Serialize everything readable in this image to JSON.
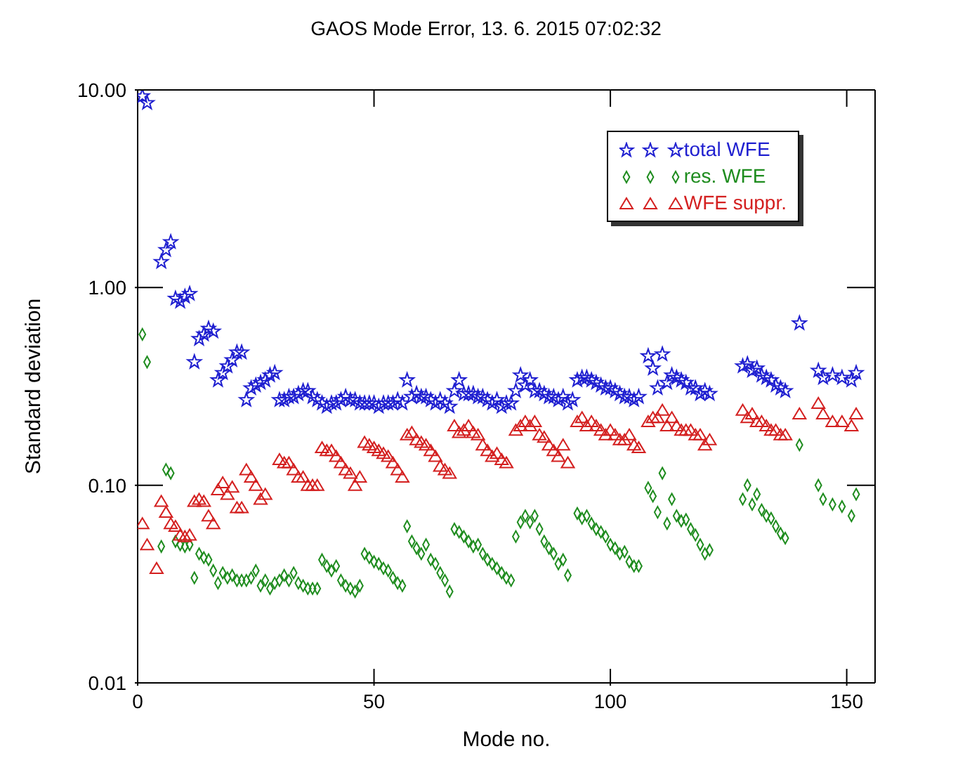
{
  "chart_data": {
    "type": "scatter",
    "title": "GAOS Mode Error, 13. 6. 2015  07:02:32",
    "xlabel": "Mode no.",
    "ylabel": "Standard deviation",
    "log": "y",
    "grid": false,
    "legend": "top right",
    "xlim": [
      0,
      156
    ],
    "xticks": [
      0,
      50,
      100,
      150
    ],
    "ylim": [
      0.01,
      10
    ],
    "yticks": [
      {
        "value": 0.01,
        "label": "0.01"
      },
      {
        "value": 0.1,
        "label": "0.10"
      },
      {
        "value": 1,
        "label": "1.00"
      },
      {
        "value": 10,
        "label": "10.00"
      }
    ],
    "series": [
      {
        "name": "total WFE",
        "color": "#1f1fd0",
        "marker": "star",
        "x": [
          1,
          2,
          5,
          6,
          7,
          8,
          9,
          10,
          11,
          12,
          13,
          14,
          15,
          16,
          17,
          18,
          19,
          20,
          21,
          22,
          23,
          24,
          25,
          26,
          27,
          28,
          29,
          30,
          31,
          32,
          33,
          34,
          35,
          36,
          37,
          38,
          39,
          40,
          41,
          42,
          43,
          44,
          45,
          46,
          47,
          48,
          49,
          50,
          51,
          52,
          53,
          54,
          55,
          56,
          57,
          58,
          59,
          60,
          61,
          62,
          63,
          64,
          65,
          66,
          67,
          68,
          69,
          70,
          71,
          72,
          73,
          74,
          75,
          76,
          77,
          78,
          79,
          80,
          81,
          82,
          83,
          84,
          85,
          86,
          87,
          88,
          89,
          90,
          91,
          92,
          93,
          94,
          95,
          96,
          97,
          98,
          99,
          100,
          101,
          102,
          103,
          104,
          105,
          106,
          108,
          109,
          110,
          111,
          112,
          113,
          114,
          115,
          116,
          117,
          118,
          119,
          120,
          121,
          128,
          129,
          130,
          131,
          132,
          133,
          134,
          135,
          136,
          137,
          140,
          144,
          145,
          147,
          149,
          151,
          152
        ],
        "values": [
          9.3,
          8.6,
          1.35,
          1.55,
          1.7,
          0.88,
          0.85,
          0.9,
          0.93,
          0.42,
          0.55,
          0.58,
          0.62,
          0.6,
          0.34,
          0.37,
          0.4,
          0.43,
          0.47,
          0.47,
          0.27,
          0.31,
          0.32,
          0.33,
          0.34,
          0.36,
          0.37,
          0.27,
          0.27,
          0.28,
          0.28,
          0.29,
          0.3,
          0.3,
          0.28,
          0.27,
          0.26,
          0.25,
          0.26,
          0.26,
          0.27,
          0.28,
          0.27,
          0.27,
          0.26,
          0.26,
          0.26,
          0.26,
          0.25,
          0.26,
          0.26,
          0.26,
          0.27,
          0.26,
          0.34,
          0.28,
          0.29,
          0.28,
          0.28,
          0.27,
          0.26,
          0.27,
          0.26,
          0.25,
          0.3,
          0.34,
          0.29,
          0.29,
          0.29,
          0.28,
          0.28,
          0.27,
          0.26,
          0.27,
          0.25,
          0.26,
          0.26,
          0.3,
          0.36,
          0.32,
          0.34,
          0.3,
          0.3,
          0.29,
          0.28,
          0.28,
          0.27,
          0.28,
          0.26,
          0.27,
          0.34,
          0.35,
          0.35,
          0.34,
          0.33,
          0.32,
          0.31,
          0.31,
          0.3,
          0.29,
          0.28,
          0.28,
          0.27,
          0.28,
          0.45,
          0.39,
          0.31,
          0.46,
          0.33,
          0.36,
          0.35,
          0.34,
          0.33,
          0.31,
          0.31,
          0.29,
          0.3,
          0.29,
          0.4,
          0.41,
          0.38,
          0.39,
          0.36,
          0.35,
          0.34,
          0.32,
          0.31,
          0.3,
          0.66,
          0.38,
          0.35,
          0.36,
          0.35,
          0.34,
          0.37
        ]
      },
      {
        "name": "res. WFE",
        "color": "#1e8c1e",
        "marker": "diamond",
        "x": [
          1,
          2,
          5,
          6,
          7,
          8,
          9,
          10,
          11,
          12,
          13,
          14,
          15,
          16,
          17,
          18,
          19,
          20,
          21,
          22,
          23,
          24,
          25,
          26,
          27,
          28,
          29,
          30,
          31,
          32,
          33,
          34,
          35,
          36,
          37,
          38,
          39,
          40,
          41,
          42,
          43,
          44,
          45,
          46,
          47,
          48,
          49,
          50,
          51,
          52,
          53,
          54,
          55,
          56,
          57,
          58,
          59,
          60,
          61,
          62,
          63,
          64,
          65,
          66,
          67,
          68,
          69,
          70,
          71,
          72,
          73,
          74,
          75,
          76,
          77,
          78,
          79,
          80,
          81,
          82,
          83,
          84,
          85,
          86,
          87,
          88,
          89,
          90,
          91,
          93,
          94,
          95,
          96,
          97,
          98,
          99,
          100,
          101,
          102,
          103,
          104,
          105,
          106,
          108,
          109,
          110,
          111,
          112,
          113,
          114,
          115,
          116,
          117,
          118,
          119,
          120,
          121,
          128,
          129,
          130,
          131,
          132,
          133,
          134,
          135,
          136,
          137,
          140,
          144,
          145,
          147,
          149,
          151,
          152
        ],
        "values": [
          0.58,
          0.42,
          0.049,
          0.12,
          0.115,
          0.052,
          0.05,
          0.049,
          0.05,
          0.034,
          0.045,
          0.043,
          0.042,
          0.037,
          0.032,
          0.036,
          0.034,
          0.035,
          0.033,
          0.033,
          0.033,
          0.034,
          0.037,
          0.031,
          0.033,
          0.03,
          0.032,
          0.033,
          0.035,
          0.033,
          0.036,
          0.032,
          0.031,
          0.03,
          0.03,
          0.03,
          0.042,
          0.039,
          0.037,
          0.039,
          0.033,
          0.031,
          0.03,
          0.029,
          0.031,
          0.045,
          0.043,
          0.041,
          0.04,
          0.038,
          0.037,
          0.034,
          0.032,
          0.031,
          0.062,
          0.052,
          0.048,
          0.045,
          0.05,
          0.042,
          0.04,
          0.036,
          0.033,
          0.029,
          0.06,
          0.058,
          0.055,
          0.052,
          0.049,
          0.05,
          0.045,
          0.042,
          0.04,
          0.038,
          0.036,
          0.034,
          0.033,
          0.055,
          0.065,
          0.07,
          0.065,
          0.07,
          0.06,
          0.052,
          0.048,
          0.045,
          0.04,
          0.042,
          0.035,
          0.072,
          0.068,
          0.07,
          0.064,
          0.06,
          0.058,
          0.055,
          0.05,
          0.048,
          0.045,
          0.046,
          0.041,
          0.039,
          0.039,
          0.097,
          0.088,
          0.073,
          0.115,
          0.064,
          0.085,
          0.07,
          0.066,
          0.067,
          0.06,
          0.056,
          0.05,
          0.045,
          0.047,
          0.085,
          0.1,
          0.08,
          0.09,
          0.075,
          0.07,
          0.068,
          0.062,
          0.057,
          0.054,
          0.16,
          0.1,
          0.085,
          0.08,
          0.078,
          0.07,
          0.09
        ]
      },
      {
        "name": "WFE suppr.",
        "color": "#d42020",
        "marker": "triangle",
        "x": [
          1,
          2,
          4,
          5,
          6,
          7,
          8,
          9,
          10,
          11,
          12,
          13,
          14,
          15,
          16,
          17,
          18,
          19,
          20,
          21,
          22,
          23,
          24,
          25,
          26,
          27,
          30,
          31,
          32,
          33,
          34,
          35,
          36,
          37,
          38,
          39,
          40,
          41,
          42,
          43,
          44,
          45,
          46,
          47,
          48,
          49,
          50,
          51,
          52,
          53,
          54,
          55,
          56,
          57,
          58,
          59,
          60,
          61,
          62,
          63,
          64,
          65,
          66,
          67,
          68,
          69,
          70,
          71,
          72,
          73,
          74,
          75,
          76,
          77,
          78,
          80,
          81,
          82,
          83,
          84,
          85,
          86,
          87,
          88,
          89,
          90,
          91,
          93,
          94,
          95,
          96,
          97,
          98,
          99,
          100,
          101,
          102,
          103,
          104,
          105,
          106,
          108,
          109,
          110,
          111,
          112,
          113,
          114,
          115,
          116,
          117,
          118,
          119,
          120,
          121,
          128,
          129,
          130,
          131,
          132,
          133,
          134,
          135,
          136,
          137,
          140,
          144,
          145,
          147,
          149,
          151,
          152
        ],
        "values": [
          0.064,
          0.05,
          0.038,
          0.083,
          0.073,
          0.064,
          0.062,
          0.056,
          0.055,
          0.056,
          0.083,
          0.085,
          0.083,
          0.07,
          0.064,
          0.095,
          0.103,
          0.09,
          0.098,
          0.077,
          0.077,
          0.12,
          0.11,
          0.1,
          0.085,
          0.09,
          0.135,
          0.13,
          0.13,
          0.12,
          0.11,
          0.11,
          0.1,
          0.1,
          0.1,
          0.155,
          0.15,
          0.15,
          0.14,
          0.13,
          0.12,
          0.115,
          0.1,
          0.11,
          0.165,
          0.16,
          0.155,
          0.15,
          0.145,
          0.14,
          0.13,
          0.12,
          0.11,
          0.18,
          0.185,
          0.17,
          0.165,
          0.16,
          0.15,
          0.14,
          0.125,
          0.12,
          0.115,
          0.2,
          0.185,
          0.19,
          0.2,
          0.185,
          0.18,
          0.16,
          0.15,
          0.14,
          0.145,
          0.135,
          0.13,
          0.19,
          0.2,
          0.21,
          0.2,
          0.21,
          0.18,
          0.175,
          0.16,
          0.15,
          0.14,
          0.16,
          0.13,
          0.21,
          0.22,
          0.2,
          0.21,
          0.2,
          0.19,
          0.18,
          0.19,
          0.18,
          0.17,
          0.17,
          0.18,
          0.16,
          0.155,
          0.21,
          0.22,
          0.22,
          0.24,
          0.2,
          0.22,
          0.2,
          0.19,
          0.19,
          0.19,
          0.18,
          0.18,
          0.16,
          0.17,
          0.24,
          0.22,
          0.23,
          0.21,
          0.21,
          0.2,
          0.19,
          0.19,
          0.18,
          0.18,
          0.23,
          0.26,
          0.23,
          0.21,
          0.21,
          0.2,
          0.23
        ]
      }
    ]
  }
}
